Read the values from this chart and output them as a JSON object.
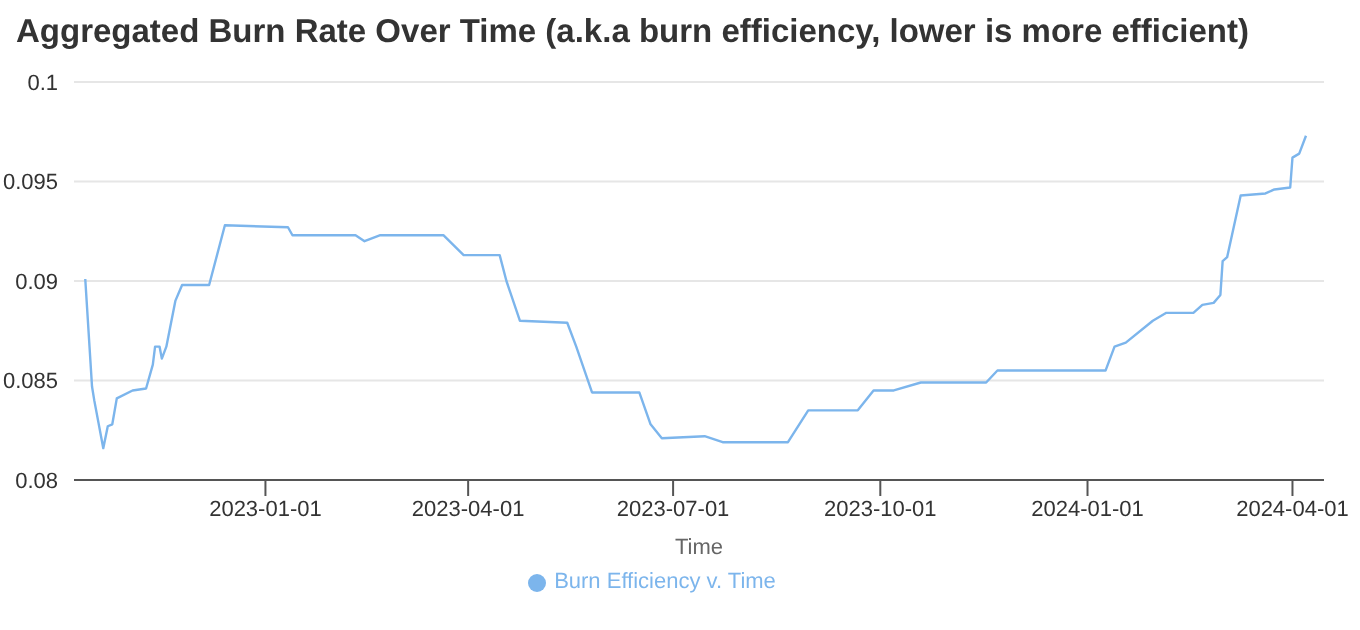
{
  "chart_data": {
    "type": "line",
    "title": "Aggregated Burn Rate Over Time (a.k.a burn efficiency, lower is more efficient)",
    "xlabel": "Time",
    "x": [
      "2022-10-13",
      "2022-10-16",
      "2022-10-17",
      "2022-10-21",
      "2022-10-23",
      "2022-10-25",
      "2022-10-27",
      "2022-11-03",
      "2022-11-09",
      "2022-11-12",
      "2022-11-13",
      "2022-11-15",
      "2022-11-16",
      "2022-11-18",
      "2022-11-22",
      "2022-11-25",
      "2022-12-07",
      "2022-12-14",
      "2023-01-11",
      "2023-01-13",
      "2023-02-10",
      "2023-02-14",
      "2023-02-21",
      "2023-03-21",
      "2023-03-30",
      "2023-04-15",
      "2023-04-18",
      "2023-04-24",
      "2023-05-15",
      "2023-05-19",
      "2023-05-26",
      "2023-06-16",
      "2023-06-21",
      "2023-06-26",
      "2023-07-15",
      "2023-07-23",
      "2023-08-21",
      "2023-08-30",
      "2023-09-21",
      "2023-09-28",
      "2023-10-07",
      "2023-10-19",
      "2023-11-17",
      "2023-11-22",
      "2024-01-09",
      "2024-01-13",
      "2024-01-18",
      "2024-01-30",
      "2024-02-05",
      "2024-02-17",
      "2024-02-21",
      "2024-02-26",
      "2024-02-29",
      "2024-03-01",
      "2024-03-03",
      "2024-03-09",
      "2024-03-20",
      "2024-03-24",
      "2024-03-31",
      "2024-04-01",
      "2024-04-04",
      "2024-04-07"
    ],
    "series": [
      {
        "name": "Burn Efficiency v. Time",
        "color": "#7cb5ec",
        "values": [
          0.0901,
          0.0847,
          0.084,
          0.0816,
          0.0827,
          0.0828,
          0.0841,
          0.0845,
          0.0846,
          0.0858,
          0.0867,
          0.0867,
          0.0861,
          0.0867,
          0.089,
          0.0898,
          0.0898,
          0.0928,
          0.0927,
          0.0923,
          0.0923,
          0.092,
          0.0923,
          0.0923,
          0.0913,
          0.0913,
          0.09,
          0.088,
          0.0879,
          0.0867,
          0.0844,
          0.0844,
          0.0828,
          0.0821,
          0.0822,
          0.0819,
          0.0819,
          0.0835,
          0.0835,
          0.0845,
          0.0845,
          0.0849,
          0.0849,
          0.0855,
          0.0855,
          0.0867,
          0.0869,
          0.088,
          0.0884,
          0.0884,
          0.0888,
          0.0889,
          0.0893,
          0.091,
          0.0912,
          0.0943,
          0.0944,
          0.0946,
          0.0947,
          0.0962,
          0.0964,
          0.0973
        ]
      }
    ],
    "xlim": [
      "2022-10-08",
      "2024-04-15"
    ],
    "xticks": [
      "2023-01-01",
      "2023-04-01",
      "2023-07-01",
      "2023-10-01",
      "2024-01-01",
      "2024-04-01"
    ],
    "ylim": [
      0.08,
      0.1
    ],
    "yticks": [
      0.08,
      0.085,
      0.09,
      0.095,
      0.1
    ],
    "grid": "y",
    "legend": "bottom",
    "marker": "none",
    "line_style": "solid"
  }
}
